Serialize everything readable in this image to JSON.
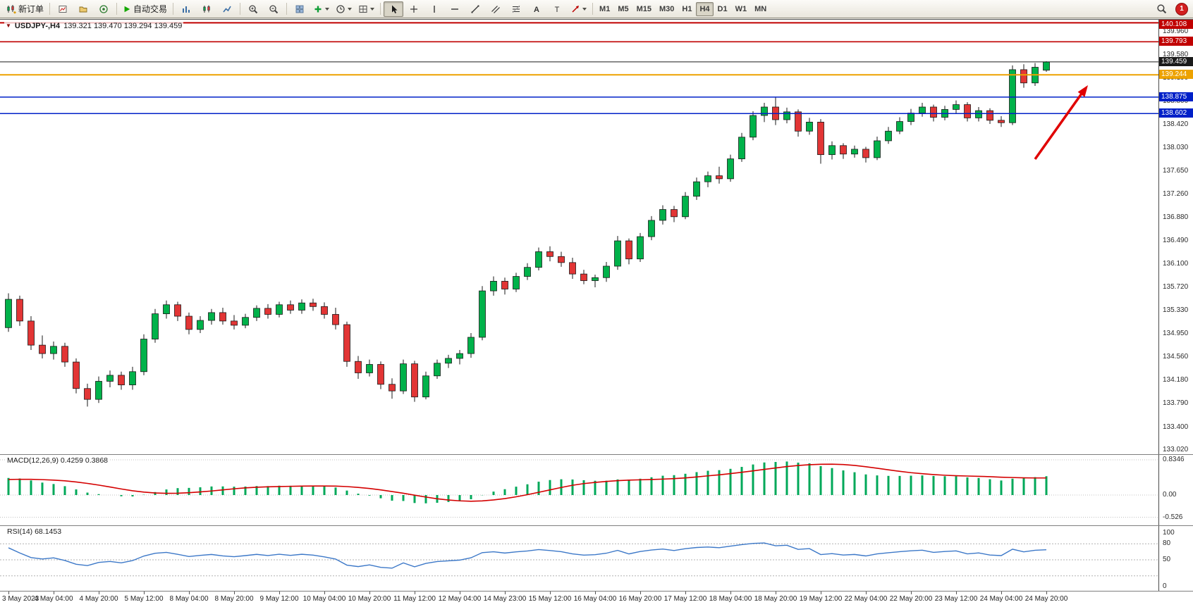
{
  "toolbar": {
    "new_order_label": "新订单",
    "auto_trading_label": "自动交易",
    "timeframes": [
      "M1",
      "M5",
      "M15",
      "M30",
      "H1",
      "H4",
      "D1",
      "W1",
      "MN"
    ],
    "active_timeframe": "H4",
    "notification_badge": "1"
  },
  "chart_window": {
    "title_symbol": "USDJPY-,H4",
    "title_ohlc": "139.321 139.470 139.294 139.459"
  },
  "price_axis": {
    "labels": [
      "139.960",
      "139.580",
      "139.190",
      "138.800",
      "138.420",
      "138.030",
      "137.650",
      "137.260",
      "136.880",
      "136.490",
      "136.100",
      "135.720",
      "135.330",
      "134.950",
      "134.560",
      "134.180",
      "133.790",
      "133.400",
      "133.020"
    ]
  },
  "price_levels": [
    {
      "price": 140.108,
      "label": "140.108",
      "color": "#c00000",
      "kind": "resistance-line"
    },
    {
      "price": 139.793,
      "label": "139.793",
      "color": "#c00000",
      "kind": "resistance-line"
    },
    {
      "price": 139.459,
      "label": "139.459",
      "color": "#1a1a1a",
      "kind": "current-price"
    },
    {
      "price": 139.244,
      "label": "139.244",
      "color": "#eda200",
      "kind": "level-line"
    },
    {
      "price": 138.875,
      "label": "138.875",
      "color": "#0020c8",
      "kind": "support-line"
    },
    {
      "price": 138.602,
      "label": "138.602",
      "color": "#0020c8",
      "kind": "support-line"
    }
  ],
  "time_axis": {
    "labels": [
      "3 May 2023",
      "4 May 04:00",
      "4 May 20:00",
      "5 May 12:00",
      "8 May 04:00",
      "8 May 20:00",
      "9 May 12:00",
      "10 May 04:00",
      "10 May 20:00",
      "11 May 12:00",
      "12 May 04:00",
      "14 May 23:00",
      "15 May 12:00",
      "16 May 04:00",
      "16 May 20:00",
      "17 May 12:00",
      "18 May 04:00",
      "18 May 20:00",
      "19 May 12:00",
      "22 May 04:00",
      "22 May 20:00",
      "23 May 12:00",
      "24 May 04:00",
      "24 May 20:00"
    ]
  },
  "chart_data": {
    "type": "candlestick",
    "symbol": "USDJPY-",
    "timeframe": "H4",
    "ylim": [
      133.02,
      140.108
    ],
    "up_color": "#00b24a",
    "down_color": "#e23535",
    "candles": [
      [
        135.05,
        135.62,
        134.98,
        135.52
      ],
      [
        135.52,
        135.58,
        135.08,
        135.16
      ],
      [
        135.16,
        135.24,
        134.68,
        134.76
      ],
      [
        134.76,
        134.92,
        134.54,
        134.62
      ],
      [
        134.62,
        134.82,
        134.52,
        134.74
      ],
      [
        134.74,
        134.8,
        134.4,
        134.48
      ],
      [
        134.48,
        134.54,
        133.96,
        134.04
      ],
      [
        134.04,
        134.12,
        133.74,
        133.86
      ],
      [
        133.86,
        134.24,
        133.8,
        134.16
      ],
      [
        134.16,
        134.34,
        134.06,
        134.26
      ],
      [
        134.26,
        134.32,
        134.02,
        134.1
      ],
      [
        134.1,
        134.4,
        134.02,
        134.32
      ],
      [
        134.32,
        134.94,
        134.26,
        134.86
      ],
      [
        134.86,
        135.36,
        134.8,
        135.28
      ],
      [
        135.28,
        135.5,
        135.2,
        135.43
      ],
      [
        135.43,
        135.48,
        135.16,
        135.24
      ],
      [
        135.24,
        135.3,
        134.94,
        135.02
      ],
      [
        135.02,
        135.24,
        134.96,
        135.17
      ],
      [
        135.17,
        135.36,
        135.1,
        135.3
      ],
      [
        135.3,
        135.38,
        135.1,
        135.16
      ],
      [
        135.16,
        135.26,
        135.02,
        135.09
      ],
      [
        135.09,
        135.28,
        135.04,
        135.22
      ],
      [
        135.22,
        135.42,
        135.16,
        135.37
      ],
      [
        135.37,
        135.44,
        135.2,
        135.27
      ],
      [
        135.27,
        135.48,
        135.22,
        135.43
      ],
      [
        135.43,
        135.5,
        135.28,
        135.34
      ],
      [
        135.34,
        135.52,
        135.28,
        135.46
      ],
      [
        135.46,
        135.53,
        135.33,
        135.4
      ],
      [
        135.4,
        135.47,
        135.2,
        135.27
      ],
      [
        135.27,
        135.38,
        135.02,
        135.1
      ],
      [
        135.1,
        135.15,
        134.4,
        134.49
      ],
      [
        134.49,
        134.58,
        134.2,
        134.3
      ],
      [
        134.3,
        134.52,
        134.24,
        134.44
      ],
      [
        134.44,
        134.49,
        134.03,
        134.11
      ],
      [
        134.11,
        134.21,
        133.87,
        134.0
      ],
      [
        134.0,
        134.52,
        133.95,
        134.45
      ],
      [
        134.45,
        134.5,
        133.82,
        133.9
      ],
      [
        133.9,
        134.32,
        133.86,
        134.25
      ],
      [
        134.25,
        134.52,
        134.2,
        134.46
      ],
      [
        134.46,
        134.6,
        134.38,
        134.54
      ],
      [
        134.54,
        134.68,
        134.44,
        134.62
      ],
      [
        134.62,
        134.96,
        134.55,
        134.89
      ],
      [
        134.89,
        135.74,
        134.84,
        135.66
      ],
      [
        135.66,
        135.9,
        135.58,
        135.82
      ],
      [
        135.82,
        135.88,
        135.6,
        135.69
      ],
      [
        135.69,
        135.96,
        135.64,
        135.9
      ],
      [
        135.9,
        136.12,
        135.84,
        136.05
      ],
      [
        136.05,
        136.38,
        136.0,
        136.31
      ],
      [
        136.31,
        136.4,
        136.15,
        136.23
      ],
      [
        136.23,
        136.31,
        136.06,
        136.13
      ],
      [
        136.13,
        136.21,
        135.86,
        135.94
      ],
      [
        135.94,
        136.01,
        135.77,
        135.83
      ],
      [
        135.83,
        135.93,
        135.72,
        135.88
      ],
      [
        135.88,
        136.14,
        135.81,
        136.07
      ],
      [
        136.07,
        136.57,
        136.01,
        136.49
      ],
      [
        136.49,
        136.53,
        136.1,
        136.19
      ],
      [
        136.19,
        136.62,
        136.14,
        136.56
      ],
      [
        136.56,
        136.9,
        136.5,
        136.83
      ],
      [
        136.83,
        137.08,
        136.76,
        137.01
      ],
      [
        137.01,
        137.07,
        136.8,
        136.89
      ],
      [
        136.89,
        137.3,
        136.85,
        137.23
      ],
      [
        137.23,
        137.54,
        137.17,
        137.47
      ],
      [
        137.47,
        137.64,
        137.38,
        137.57
      ],
      [
        137.57,
        137.72,
        137.44,
        137.52
      ],
      [
        137.52,
        137.92,
        137.47,
        137.85
      ],
      [
        137.85,
        138.28,
        137.8,
        138.21
      ],
      [
        138.21,
        138.64,
        138.16,
        138.57
      ],
      [
        138.57,
        138.78,
        138.46,
        138.71
      ],
      [
        138.71,
        138.87,
        138.41,
        138.5
      ],
      [
        138.5,
        138.7,
        138.44,
        138.63
      ],
      [
        138.63,
        138.67,
        138.22,
        138.31
      ],
      [
        138.31,
        138.53,
        138.25,
        138.46
      ],
      [
        138.46,
        138.51,
        137.77,
        137.92
      ],
      [
        137.92,
        138.14,
        137.84,
        138.07
      ],
      [
        138.07,
        138.11,
        137.85,
        137.93
      ],
      [
        137.93,
        138.07,
        137.87,
        138.01
      ],
      [
        138.01,
        138.05,
        137.79,
        137.87
      ],
      [
        137.87,
        138.22,
        137.83,
        138.15
      ],
      [
        138.15,
        138.38,
        138.1,
        138.31
      ],
      [
        138.31,
        138.54,
        138.26,
        138.47
      ],
      [
        138.47,
        138.68,
        138.41,
        138.61
      ],
      [
        138.61,
        138.78,
        138.55,
        138.71
      ],
      [
        138.71,
        138.75,
        138.47,
        138.54
      ],
      [
        138.54,
        138.73,
        138.49,
        138.67
      ],
      [
        138.67,
        138.82,
        138.6,
        138.75
      ],
      [
        138.75,
        138.79,
        138.47,
        138.53
      ],
      [
        138.53,
        138.71,
        138.47,
        138.65
      ],
      [
        138.65,
        138.69,
        138.43,
        138.49
      ],
      [
        138.49,
        138.56,
        138.38,
        138.45
      ],
      [
        138.45,
        139.4,
        138.41,
        139.33
      ],
      [
        139.33,
        139.42,
        139.03,
        139.11
      ],
      [
        139.11,
        139.44,
        139.06,
        139.37
      ],
      [
        139.321,
        139.47,
        139.294,
        139.459
      ]
    ],
    "annotations": [
      {
        "type": "arrow",
        "color": "#e00000",
        "direction": "up-right"
      }
    ]
  },
  "macd_panel": {
    "label": "MACD(12,26,9) 0.4259 0.3868",
    "values": [
      "0.4259",
      "0.3868"
    ],
    "axis_labels": [
      "0.8346",
      "0.00",
      "-0.526"
    ],
    "histogram_color": "#00a859",
    "signal_color": "#d40000"
  },
  "rsi_panel": {
    "label": "RSI(14) 68.1453",
    "value": "68.1453",
    "axis_labels": [
      "100",
      "80",
      "50",
      "0"
    ],
    "levels": [
      80,
      50,
      20
    ],
    "line_color": "#3c78c8"
  }
}
